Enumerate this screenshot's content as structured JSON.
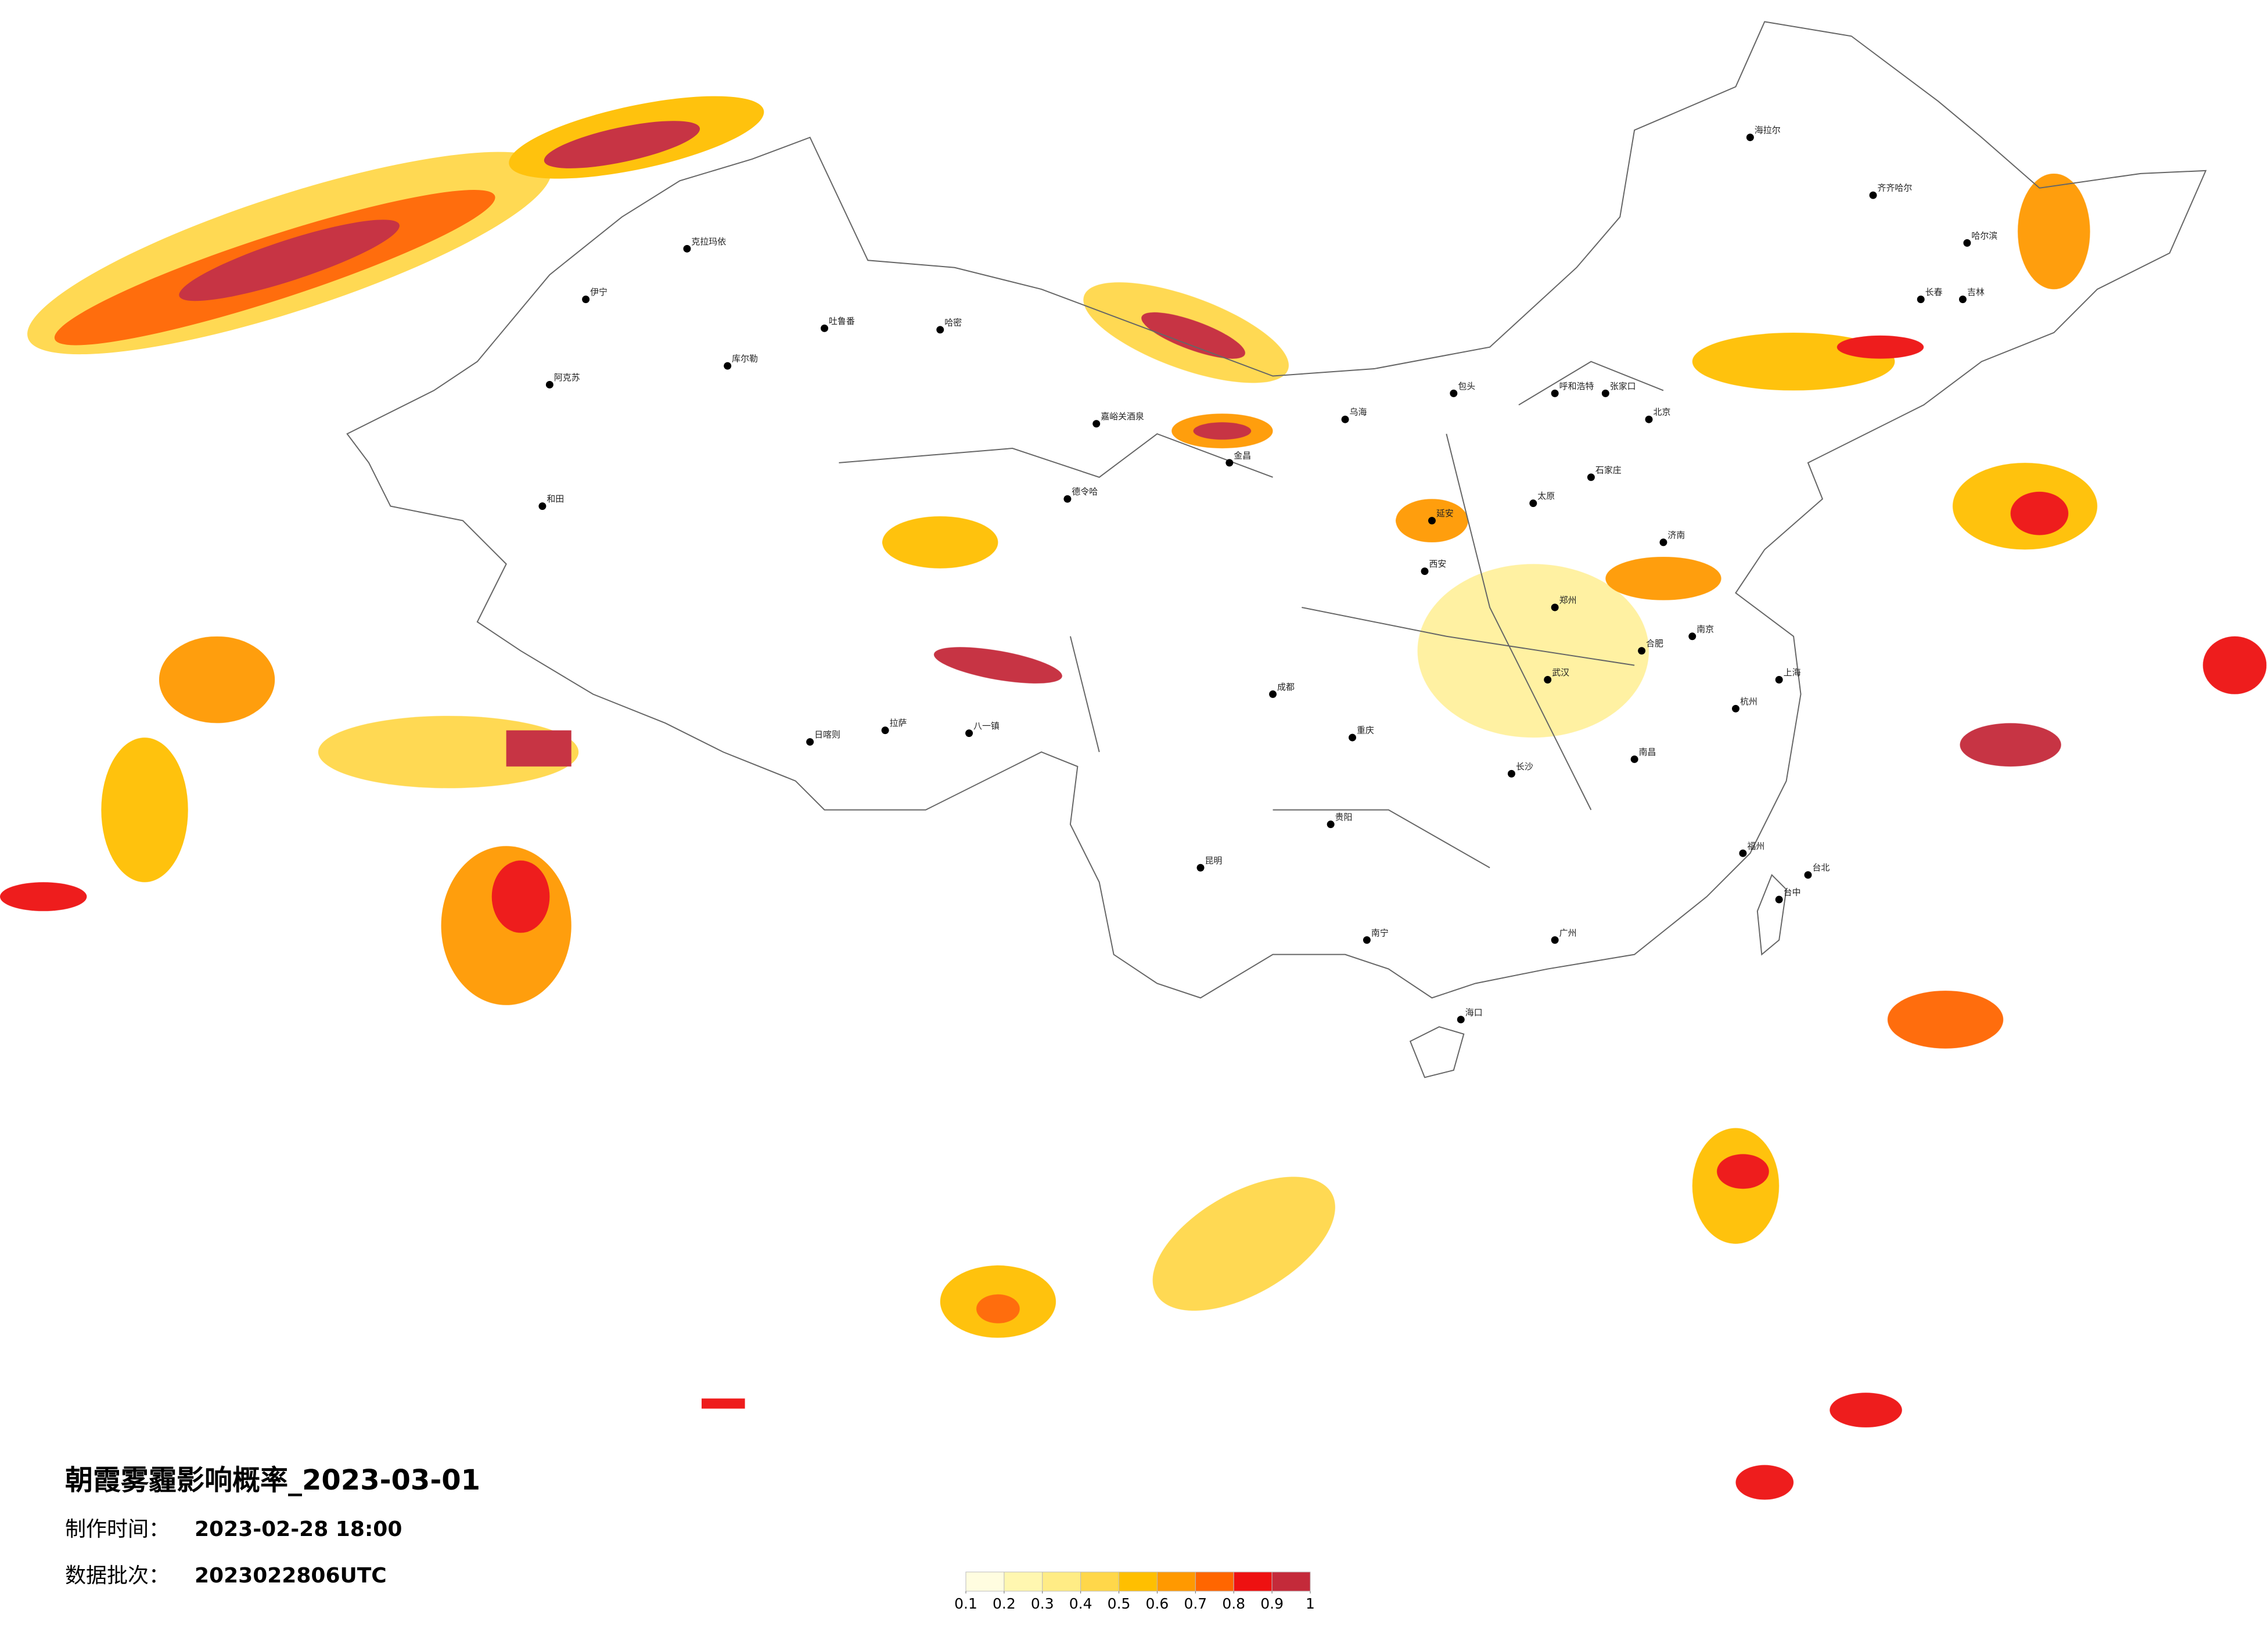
{
  "header": {
    "title": "朝霞雾霾影响概率_2023-03-01",
    "made_label": "制作时间：",
    "made_value": "2023-02-28 18:00",
    "batch_label": "数据批次：",
    "batch_value": "2023022806UTC"
  },
  "legend": {
    "ticks": [
      0.1,
      0.2,
      0.3,
      0.4,
      0.5,
      0.6,
      0.7,
      0.8,
      0.9,
      1
    ],
    "colors": [
      "#fffde0",
      "#fff7b0",
      "#ffec85",
      "#ffd74a",
      "#ffbf00",
      "#ff9900",
      "#ff6600",
      "#ee1111",
      "#c42a3a"
    ]
  },
  "cities": [
    "海拉尔",
    "齐齐哈尔",
    "哈尔滨",
    "长春",
    "吉林",
    "呼和浩特",
    "包头",
    "张家口",
    "北京",
    "石家庄",
    "太原",
    "济南",
    "郑州",
    "延安",
    "金昌",
    "乌海",
    "拉萨",
    "日喀则",
    "八一镇",
    "和田",
    "阿克苏",
    "库尔勒",
    "吐鲁番",
    "克拉玛依",
    "伊宁",
    "哈密",
    "嘉峪关酒泉",
    "德令哈",
    "昆明",
    "贵阳",
    "南宁",
    "长沙",
    "武汉",
    "南昌",
    "福州",
    "台北",
    "台中",
    "海口",
    "上海",
    "成都",
    "重庆",
    "广州",
    "西安",
    "合肥",
    "南京",
    "杭州"
  ]
}
